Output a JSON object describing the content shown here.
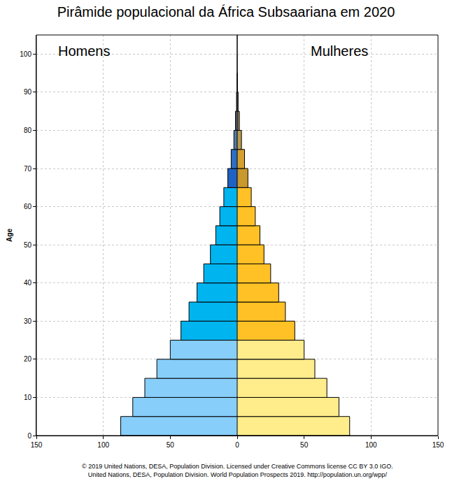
{
  "chart_data": {
    "type": "bar",
    "orientation": "horizontal",
    "title": "Pirâmide populacional da África Subsaariana em 2020",
    "y_label": "Age",
    "x": [
      0,
      5,
      10,
      15,
      20,
      25,
      30,
      35,
      40,
      45,
      50,
      55,
      60,
      65,
      70,
      75,
      80,
      85,
      90,
      95,
      100
    ],
    "series": [
      {
        "name": "Homens",
        "values": [
          87,
          78,
          69,
          60,
          50,
          42,
          36,
          30,
          25,
          20,
          16,
          13,
          10,
          7,
          4.5,
          2.5,
          1.3,
          0.5,
          0.15,
          0.03,
          0.003
        ],
        "colors": [
          "#87CEFA",
          "#87CEFA",
          "#87CEFA",
          "#87CEFA",
          "#87CEFA",
          "#00B4F0",
          "#00B4F0",
          "#00B4F0",
          "#00B4F0",
          "#00B4F0",
          "#00B4F0",
          "#00B4F0",
          "#00B4F0",
          "#1F62C4",
          "#2C6FC4",
          "#5078A8",
          "#506890",
          "#506890",
          "#506890",
          "#506890",
          "#506890"
        ]
      },
      {
        "name": "Mulheres",
        "values": [
          84,
          76,
          67,
          58,
          50,
          43,
          36,
          31,
          25,
          20,
          17,
          13.5,
          10.5,
          8,
          5.5,
          3.2,
          1.6,
          0.7,
          0.2,
          0.04,
          0.005
        ],
        "colors": [
          "#FFEC8B",
          "#FFEC8B",
          "#FFEC8B",
          "#FFEC8B",
          "#FFEC8B",
          "#FFC125",
          "#FFC125",
          "#FFC125",
          "#FFC125",
          "#FFC125",
          "#FFC125",
          "#FFC125",
          "#FFC125",
          "#C9992E",
          "#D4A030",
          "#B89A50",
          "#907850",
          "#907850",
          "#907850",
          "#907850",
          "#907850"
        ]
      }
    ],
    "xlim": [
      0,
      150
    ],
    "xticks": [
      0,
      50,
      100,
      150
    ],
    "ylim": [
      0,
      105
    ],
    "yticks": [
      0,
      10,
      20,
      30,
      40,
      50,
      60,
      70,
      80,
      90,
      100
    ],
    "grid": true,
    "source": [
      "© 2019 United Nations, DESA, Population Division. Licensed under Creative Commons license CC BY 3.0 IGO.",
      "United Nations, DESA, Population Division. World Population Prospects 2019. http://population.un.org/wpp/"
    ]
  }
}
